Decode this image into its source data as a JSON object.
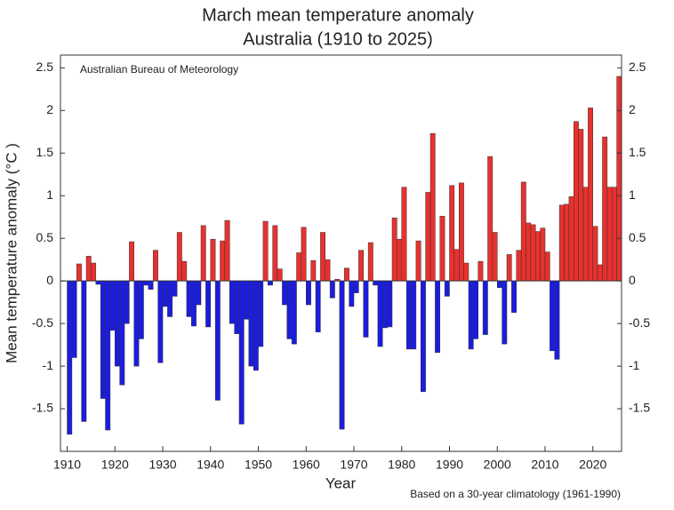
{
  "chart_data": {
    "type": "bar",
    "title": "March mean temperature anomaly",
    "subtitle": "Australia (1910 to 2025)",
    "annotation": "Australian Bureau of Meteorology",
    "footnote": "Based on a 30-year climatology (1961-1990)",
    "xlabel": "Year",
    "ylabel": "Mean temperature anomaly (°C )",
    "positive_color": "#e8312e",
    "negative_color": "#1c1ce0",
    "x": [
      1910,
      1911,
      1912,
      1913,
      1914,
      1915,
      1916,
      1917,
      1918,
      1919,
      1920,
      1921,
      1922,
      1923,
      1924,
      1925,
      1926,
      1927,
      1928,
      1929,
      1930,
      1931,
      1932,
      1933,
      1934,
      1935,
      1936,
      1937,
      1938,
      1939,
      1940,
      1941,
      1942,
      1943,
      1944,
      1945,
      1946,
      1947,
      1948,
      1949,
      1950,
      1951,
      1952,
      1953,
      1954,
      1955,
      1956,
      1957,
      1958,
      1959,
      1960,
      1961,
      1962,
      1963,
      1964,
      1965,
      1966,
      1967,
      1968,
      1969,
      1970,
      1971,
      1972,
      1973,
      1974,
      1975,
      1976,
      1977,
      1978,
      1979,
      1980,
      1981,
      1982,
      1983,
      1984,
      1985,
      1986,
      1987,
      1988,
      1989,
      1990,
      1991,
      1992,
      1993,
      1994,
      1995,
      1996,
      1997,
      1998,
      1999,
      2000,
      2001,
      2002,
      2003,
      2004,
      2005,
      2006,
      2007,
      2008,
      2009,
      2010,
      2011,
      2012,
      2013,
      2014,
      2015,
      2016,
      2017,
      2018,
      2019,
      2020,
      2021,
      2022,
      2023,
      2024,
      2025
    ],
    "values": [
      -1.8,
      -0.9,
      0.2,
      -1.65,
      0.29,
      0.21,
      -0.04,
      -1.38,
      -1.75,
      -0.58,
      -1.0,
      -1.22,
      -0.5,
      0.46,
      -1.0,
      -0.68,
      -0.05,
      -0.1,
      0.36,
      -0.96,
      -0.3,
      -0.42,
      -0.18,
      0.57,
      0.23,
      -0.42,
      -0.53,
      -0.28,
      0.65,
      -0.54,
      0.49,
      -1.4,
      0.47,
      0.71,
      -0.5,
      -0.62,
      -1.68,
      -0.45,
      -1.0,
      -1.05,
      -0.77,
      0.7,
      -0.05,
      0.65,
      0.14,
      -0.28,
      -0.68,
      -0.74,
      0.33,
      0.63,
      -0.28,
      0.24,
      -0.6,
      0.57,
      0.25,
      -0.2,
      0.02,
      -1.74,
      0.15,
      -0.3,
      -0.14,
      0.36,
      -0.66,
      0.45,
      -0.05,
      -0.77,
      -0.55,
      -0.54,
      0.74,
      0.49,
      1.1,
      -0.8,
      -0.8,
      0.47,
      -1.3,
      1.04,
      1.73,
      -0.84,
      0.76,
      -0.18,
      1.12,
      0.37,
      1.15,
      0.21,
      -0.8,
      -0.68,
      0.23,
      -0.63,
      1.46,
      0.57,
      -0.08,
      -0.74,
      0.31,
      -0.37,
      0.36,
      1.16,
      0.68,
      0.66,
      0.58,
      0.62,
      0.34,
      -0.82,
      -0.92,
      0.89,
      0.9,
      0.99,
      1.87,
      1.78,
      1.1,
      2.03,
      0.64,
      0.19,
      1.69,
      1.1,
      1.1,
      2.4
    ],
    "xlim": [
      1908.6,
      2026
    ],
    "xticks": [
      1910,
      1920,
      1930,
      1940,
      1950,
      1960,
      1970,
      1980,
      1990,
      2000,
      2010,
      2020
    ],
    "ylim": [
      -2,
      2.65
    ],
    "yticks": [
      -1.5,
      -1,
      -0.5,
      0,
      0.5,
      1,
      1.5,
      2,
      2.5
    ]
  }
}
